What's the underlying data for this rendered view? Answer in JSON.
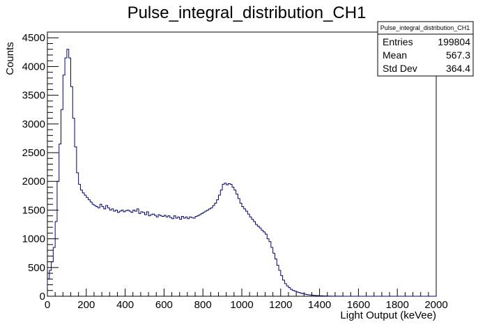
{
  "chart_data": {
    "type": "histogram",
    "title": "Pulse_integral_distribution_CH1",
    "xlabel": "Light Output (keVee)",
    "ylabel": "Counts",
    "xlim": [
      0,
      2000
    ],
    "ylim": [
      0,
      4600
    ],
    "xticks": [
      0,
      200,
      400,
      600,
      800,
      1000,
      1200,
      1400,
      1600,
      1800,
      2000
    ],
    "yticks": [
      0,
      500,
      1000,
      1500,
      2000,
      2500,
      3000,
      3500,
      4000,
      4500
    ],
    "line_color": "#000080",
    "grid": false,
    "legend": "none",
    "stats_box": {
      "title": "Pulse_integral_distribution_CH1",
      "rows": [
        {
          "label": "Entries",
          "value": "199804"
        },
        {
          "label": "Mean",
          "value": "567.3"
        },
        {
          "label": "Std Dev",
          "value": "364.4"
        }
      ]
    },
    "bin_width": 10,
    "bin_start": 0,
    "values": [
      300,
      450,
      600,
      850,
      1300,
      2000,
      2650,
      3250,
      3850,
      4150,
      4300,
      4150,
      3650,
      3100,
      2600,
      2150,
      1950,
      1850,
      1800,
      1760,
      1720,
      1680,
      1640,
      1600,
      1580,
      1560,
      1540,
      1600,
      1560,
      1520,
      1580,
      1540,
      1500,
      1520,
      1480,
      1500,
      1460,
      1480,
      1500,
      1470,
      1490,
      1500,
      1480,
      1460,
      1500,
      1480,
      1520,
      1440,
      1470,
      1460,
      1420,
      1470,
      1400,
      1420,
      1430,
      1410,
      1380,
      1420,
      1400,
      1390,
      1410,
      1380,
      1400,
      1370,
      1350,
      1400,
      1360,
      1380,
      1340,
      1390,
      1360,
      1380,
      1350,
      1380,
      1370,
      1360,
      1390,
      1400,
      1420,
      1440,
      1460,
      1480,
      1500,
      1520,
      1540,
      1580,
      1620,
      1680,
      1760,
      1850,
      1950,
      1970,
      1940,
      1960,
      1950,
      1900,
      1850,
      1780,
      1700,
      1620,
      1560,
      1520,
      1480,
      1430,
      1380,
      1340,
      1300,
      1250,
      1220,
      1190,
      1150,
      1120,
      1080,
      1000,
      950,
      850,
      750,
      650,
      540,
      450,
      360,
      280,
      220,
      180,
      150,
      120,
      100,
      90,
      75,
      65,
      55,
      45,
      38,
      30,
      25,
      22,
      18,
      14,
      12,
      10,
      8,
      7,
      5,
      4,
      3,
      3,
      2,
      2,
      1,
      1,
      1,
      1,
      0,
      0,
      0,
      0,
      0,
      0,
      0,
      0,
      0,
      0,
      0,
      0,
      0,
      0,
      0,
      0,
      0,
      0,
      0,
      0,
      0,
      0,
      0,
      0,
      0,
      0,
      0,
      0,
      0,
      0,
      0,
      0,
      0,
      0,
      0,
      0,
      0,
      0,
      0,
      0,
      0,
      0,
      0,
      0,
      0,
      0,
      0,
      0
    ]
  }
}
